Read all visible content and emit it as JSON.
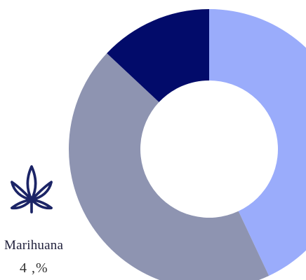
{
  "chart_data": {
    "type": "pie",
    "donut": true,
    "categories": [
      "",
      "",
      ""
    ],
    "values": [
      43,
      44,
      13
    ],
    "colors": [
      "#9aacfb",
      "#8e94b1",
      "#020b6a"
    ],
    "title": "",
    "legend": "none",
    "annotation": {
      "label": "Marihuana",
      "value": "4 ,%",
      "icon": "cannabis-leaf-icon",
      "icon_color": "#1b2466"
    }
  }
}
